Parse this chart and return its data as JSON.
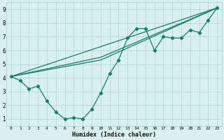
{
  "xlabel": "Humidex (Indice chaleur)",
  "xlim": [
    -0.5,
    23.5
  ],
  "ylim": [
    0.5,
    9.5
  ],
  "xticks": [
    0,
    1,
    2,
    3,
    4,
    5,
    6,
    7,
    8,
    9,
    10,
    11,
    12,
    13,
    14,
    15,
    16,
    17,
    18,
    19,
    20,
    21,
    22,
    23
  ],
  "yticks": [
    1,
    2,
    3,
    4,
    5,
    6,
    7,
    8,
    9
  ],
  "line_color": "#1a7a6e",
  "bg_color": "#d8f0ee",
  "grid_color": "#aed4cf",
  "line1_x": [
    0,
    1,
    2,
    3,
    4,
    5,
    6,
    7,
    8,
    9,
    10,
    11,
    12,
    13,
    14,
    15,
    16,
    17,
    18,
    19,
    20,
    21,
    22,
    23
  ],
  "line1_y": [
    4.1,
    3.8,
    3.2,
    3.4,
    2.3,
    1.5,
    1.0,
    1.1,
    1.0,
    1.7,
    2.9,
    4.3,
    5.3,
    6.9,
    7.6,
    7.6,
    6.0,
    7.0,
    6.9,
    6.9,
    7.5,
    7.3,
    8.2,
    9.1
  ],
  "line2_x": [
    0,
    23
  ],
  "line2_y": [
    4.1,
    9.1
  ],
  "line3_x": [
    0,
    10,
    23
  ],
  "line3_y": [
    4.1,
    5.3,
    9.1
  ],
  "line4_x": [
    0,
    10,
    23
  ],
  "line4_y": [
    4.1,
    5.5,
    9.1
  ]
}
